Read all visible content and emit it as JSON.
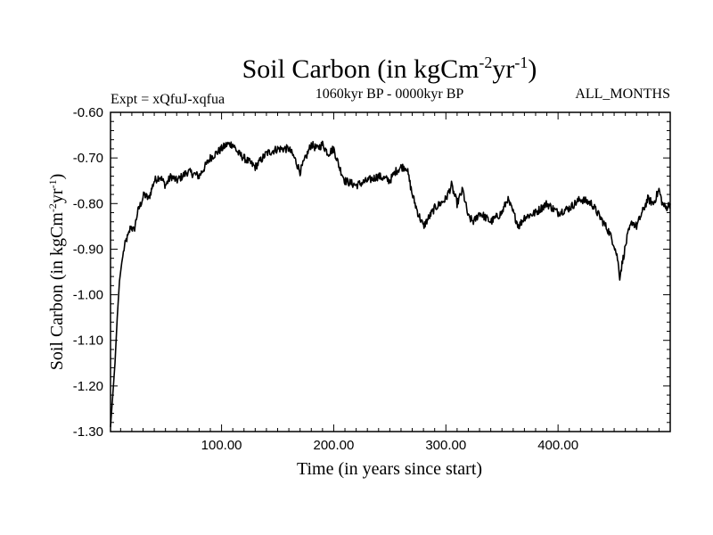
{
  "chart_data": {
    "type": "line",
    "title": {
      "main": "Soil Carbon (in kgCm",
      "sup1": "-2",
      "mid": "yr",
      "sup2": "-1",
      "end": ")"
    },
    "subtitle_left": "Expt = xQfuJ-xqfua",
    "subtitle_center": "1060kyr BP - 0000kyr BP",
    "subtitle_right": "ALL_MONTHS",
    "xlabel": "Time (in years since start)",
    "ylabel": {
      "main": "Soil Carbon (in kgCm",
      "sup1": "-2",
      "mid": "yr",
      "sup2": "-1",
      "end": ")"
    },
    "xlim": [
      1,
      500
    ],
    "ylim": [
      -1.3,
      -0.6
    ],
    "x_ticks": [
      100,
      200,
      300,
      400
    ],
    "x_tick_labels": [
      "100.00",
      "200.00",
      "300.00",
      "400.00"
    ],
    "y_ticks": [
      -1.3,
      -1.2,
      -1.1,
      -1.0,
      -0.9,
      -0.8,
      -0.7,
      -0.6
    ],
    "y_tick_labels": [
      "-1.30",
      "-1.20",
      "-1.10",
      "-1.00",
      "-0.90",
      "-0.80",
      "-0.70",
      "-0.60"
    ],
    "line_color": "#000000",
    "series": [
      {
        "name": "Soil Carbon",
        "x": [
          1,
          3,
          5,
          7,
          9,
          11,
          13,
          15,
          17,
          19,
          22,
          25,
          28,
          31,
          35,
          40,
          45,
          50,
          55,
          60,
          70,
          80,
          90,
          100,
          105,
          110,
          115,
          120,
          130,
          140,
          150,
          160,
          165,
          170,
          175,
          180,
          185,
          190,
          195,
          200,
          205,
          210,
          220,
          230,
          240,
          250,
          255,
          260,
          265,
          270,
          275,
          280,
          285,
          290,
          300,
          305,
          310,
          315,
          320,
          325,
          330,
          340,
          350,
          355,
          360,
          365,
          370,
          380,
          390,
          400,
          410,
          420,
          430,
          440,
          445,
          450,
          453,
          455,
          458,
          462,
          466,
          470,
          475,
          480,
          485,
          490,
          493,
          496,
          500
        ],
        "values": [
          -1.29,
          -1.22,
          -1.15,
          -1.05,
          -0.97,
          -0.93,
          -0.9,
          -0.88,
          -0.87,
          -0.85,
          -0.86,
          -0.82,
          -0.8,
          -0.78,
          -0.79,
          -0.75,
          -0.74,
          -0.76,
          -0.74,
          -0.75,
          -0.73,
          -0.74,
          -0.7,
          -0.68,
          -0.67,
          -0.67,
          -0.69,
          -0.7,
          -0.72,
          -0.69,
          -0.68,
          -0.68,
          -0.7,
          -0.73,
          -0.7,
          -0.67,
          -0.68,
          -0.67,
          -0.69,
          -0.68,
          -0.72,
          -0.75,
          -0.76,
          -0.75,
          -0.74,
          -0.75,
          -0.73,
          -0.72,
          -0.72,
          -0.78,
          -0.82,
          -0.85,
          -0.83,
          -0.81,
          -0.79,
          -0.76,
          -0.8,
          -0.77,
          -0.83,
          -0.84,
          -0.82,
          -0.84,
          -0.82,
          -0.79,
          -0.82,
          -0.85,
          -0.83,
          -0.82,
          -0.8,
          -0.82,
          -0.81,
          -0.79,
          -0.8,
          -0.84,
          -0.86,
          -0.89,
          -0.92,
          -0.96,
          -0.92,
          -0.87,
          -0.84,
          -0.85,
          -0.82,
          -0.79,
          -0.8,
          -0.77,
          -0.8,
          -0.81,
          -0.8
        ]
      }
    ]
  }
}
